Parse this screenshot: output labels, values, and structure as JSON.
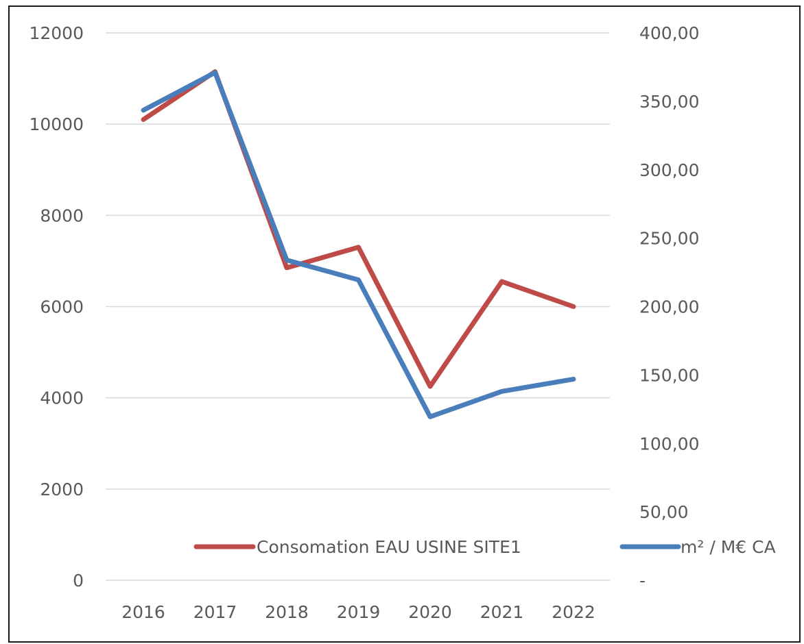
{
  "chart_data": {
    "type": "line",
    "title": "",
    "xlabel": "",
    "ylabel": "",
    "categories": [
      "2016",
      "2017",
      "2018",
      "2019",
      "2020",
      "2021",
      "2022"
    ],
    "series": [
      {
        "name": "Consomation EAU USINE SITE1",
        "axis": "left",
        "color": "#be4b48",
        "values": [
          10100,
          11150,
          6850,
          7300,
          4250,
          6550,
          6000
        ]
      },
      {
        "name": "m² / M€ CA",
        "axis": "right",
        "color": "#4a7ebb",
        "values": [
          343.5,
          371.0,
          234.0,
          219.5,
          119.5,
          138.0,
          147.0
        ]
      }
    ],
    "y_left": {
      "min": 0,
      "max": 12000,
      "ticks": [
        0,
        2000,
        4000,
        6000,
        8000,
        10000,
        12000
      ],
      "tick_labels": [
        "0",
        "2000",
        "4000",
        "6000",
        "8000",
        "10000",
        "12000"
      ]
    },
    "y_right": {
      "min": 0,
      "max": 400,
      "ticks": [
        0,
        50,
        100,
        150,
        200,
        250,
        300,
        350,
        400
      ],
      "tick_labels": [
        "-",
        "50,00",
        "100,00",
        "150,00",
        "200,00",
        "250,00",
        "300,00",
        "350,00",
        "400,00"
      ]
    },
    "grid": true,
    "gridline_color": "#d9d9d9",
    "legend_position": "bottom-inside"
  }
}
